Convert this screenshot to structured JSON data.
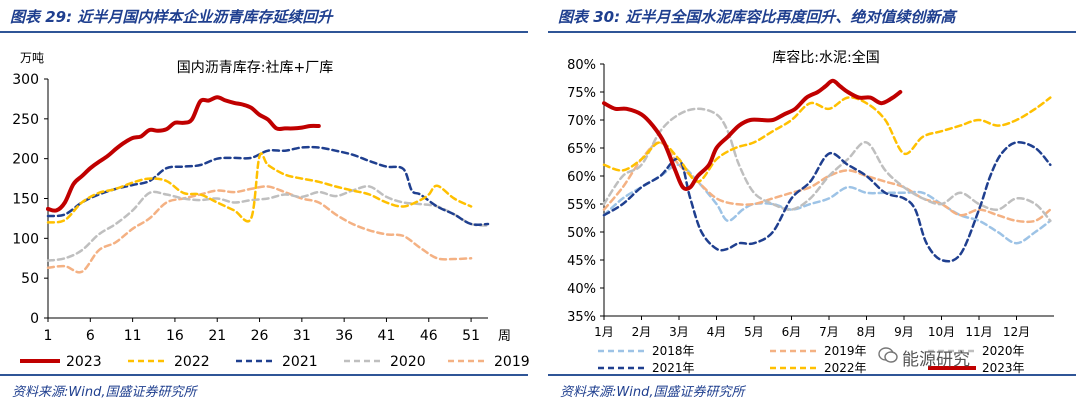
{
  "left": {
    "figure_title": "图表 29:  近半月国内样本企业沥青库存延续回升",
    "source": "资料来源:Wind,国盛证券研究所"
  },
  "right": {
    "figure_title": "图表 30:  近半月全国水泥库容比再度回升、绝对值续创新高",
    "source": "资料来源:Wind,国盛证券研究所"
  },
  "watermark": "能源研究",
  "chart_data": [
    {
      "type": "line",
      "title": "国内沥青库存:社库+厂库",
      "ylabel": "万吨",
      "xlabel": "周",
      "ylim": [
        0,
        300
      ],
      "yticks": [
        0,
        50,
        100,
        150,
        200,
        250,
        300
      ],
      "xlim": [
        1,
        53
      ],
      "xticks": [
        1,
        6,
        11,
        16,
        21,
        26,
        31,
        36,
        41,
        46,
        51
      ],
      "legend_position": "bottom",
      "series": [
        {
          "name": "2023",
          "color": "#c00000",
          "style": "solid",
          "width": 4,
          "x": [
            1,
            2,
            3,
            4,
            5,
            6,
            7,
            8,
            9,
            10,
            11,
            12,
            13,
            14,
            15,
            16,
            17,
            18,
            19,
            20,
            21,
            22,
            23,
            24,
            25,
            26,
            27,
            28,
            29,
            30,
            31,
            32,
            33
          ],
          "y": [
            137,
            135,
            145,
            168,
            178,
            188,
            196,
            203,
            212,
            220,
            226,
            228,
            236,
            235,
            237,
            245,
            245,
            249,
            272,
            273,
            277,
            273,
            270,
            268,
            264,
            255,
            249,
            238,
            238,
            238,
            239,
            241,
            241
          ]
        },
        {
          "name": "2022",
          "color": "#ffc000",
          "style": "dashed",
          "width": 2.5,
          "x": [
            1,
            3,
            5,
            7,
            9,
            11,
            13,
            15,
            17,
            19,
            21,
            23,
            25,
            26,
            27,
            29,
            31,
            33,
            35,
            37,
            39,
            41,
            43,
            45,
            46,
            47,
            49,
            51
          ],
          "y": [
            120,
            123,
            145,
            157,
            162,
            170,
            175,
            172,
            157,
            155,
            145,
            135,
            125,
            203,
            192,
            180,
            175,
            171,
            165,
            160,
            155,
            145,
            140,
            148,
            155,
            166,
            150,
            140
          ]
        },
        {
          "name": "2021",
          "color": "#1f3f8f",
          "style": "dashed",
          "width": 2.5,
          "x": [
            1,
            3,
            5,
            7,
            9,
            11,
            13,
            15,
            17,
            19,
            21,
            23,
            25,
            27,
            29,
            31,
            33,
            35,
            37,
            39,
            41,
            43,
            44,
            45,
            47,
            49,
            51,
            53
          ],
          "y": [
            128,
            130,
            145,
            155,
            162,
            167,
            172,
            188,
            190,
            192,
            200,
            201,
            201,
            210,
            210,
            214,
            214,
            210,
            205,
            197,
            190,
            187,
            160,
            155,
            140,
            130,
            118,
            118
          ]
        },
        {
          "name": "2020",
          "color": "#bfbfbf",
          "style": "dashed",
          "width": 2.5,
          "x": [
            1,
            3,
            5,
            7,
            9,
            11,
            13,
            15,
            17,
            19,
            21,
            23,
            25,
            27,
            29,
            31,
            33,
            35,
            37,
            39,
            41,
            43,
            45,
            47,
            49,
            51,
            53
          ],
          "y": [
            72,
            75,
            85,
            105,
            118,
            135,
            157,
            155,
            150,
            148,
            150,
            145,
            148,
            150,
            155,
            152,
            158,
            153,
            160,
            165,
            152,
            145,
            143,
            140,
            130,
            118,
            116
          ]
        },
        {
          "name": "2019",
          "color": "#f4b183",
          "style": "dashed",
          "width": 2.5,
          "x": [
            1,
            3,
            5,
            7,
            9,
            11,
            13,
            15,
            17,
            19,
            21,
            23,
            25,
            27,
            29,
            31,
            33,
            35,
            37,
            39,
            41,
            43,
            45,
            47,
            49,
            51
          ],
          "y": [
            63,
            65,
            58,
            85,
            95,
            112,
            125,
            145,
            150,
            155,
            160,
            158,
            162,
            165,
            158,
            150,
            145,
            130,
            118,
            110,
            105,
            103,
            88,
            75,
            74,
            75
          ]
        }
      ]
    },
    {
      "type": "line",
      "title": "库容比:水泥:全国",
      "ylabel": "",
      "xlabel": "",
      "ylim": [
        35,
        80
      ],
      "yticks": [
        "35%",
        "40%",
        "45%",
        "50%",
        "55%",
        "60%",
        "65%",
        "70%",
        "75%",
        "80%"
      ],
      "xcategories": [
        "1月",
        "2月",
        "3月",
        "4月",
        "5月",
        "6月",
        "7月",
        "8月",
        "9月",
        "10月",
        "11月",
        "12月"
      ],
      "xlim": [
        1,
        13
      ],
      "legend_position": "bottom",
      "series": [
        {
          "name": "2018年",
          "color": "#9dc3e6",
          "style": "dashed",
          "width": 2.5,
          "x": [
            1,
            1.5,
            2,
            2.5,
            3,
            3.5,
            4,
            4.3,
            4.7,
            5,
            5.5,
            6,
            6.5,
            7,
            7.5,
            8,
            8.5,
            9,
            9.5,
            10,
            10.5,
            11,
            11.5,
            12,
            12.5,
            12.9
          ],
          "y": [
            53,
            56,
            58,
            60,
            62,
            59,
            55,
            52,
            54,
            55,
            55,
            54,
            55,
            56,
            58,
            57,
            57,
            57,
            57,
            55,
            53,
            52,
            50,
            48,
            50,
            52
          ]
        },
        {
          "name": "2019年",
          "color": "#f4b183",
          "style": "dashed",
          "width": 2.5,
          "x": [
            1,
            1.5,
            2,
            2.5,
            3,
            3.5,
            4,
            4.5,
            5,
            5.5,
            6,
            6.5,
            7,
            7.5,
            8,
            8.5,
            9,
            9.5,
            10,
            10.5,
            11,
            11.5,
            12,
            12.5,
            12.9
          ],
          "y": [
            54,
            58,
            63,
            66,
            62,
            59,
            56,
            55,
            55,
            56,
            57,
            58,
            60,
            61,
            60,
            59,
            58,
            56,
            55,
            53,
            54,
            53,
            52,
            52,
            54
          ]
        },
        {
          "name": "2020年",
          "color": "#bfbfbf",
          "style": "dashed",
          "width": 2.5,
          "x": [
            1,
            1.5,
            2,
            2.5,
            3,
            3.5,
            4,
            4.3,
            4.6,
            5,
            5.5,
            6,
            6.5,
            7,
            7.5,
            8,
            8.5,
            9,
            9.5,
            10,
            10.5,
            11,
            11.5,
            12,
            12.5,
            12.9
          ],
          "y": [
            55,
            60,
            62,
            68,
            71,
            72,
            71,
            68,
            62,
            57,
            55,
            54,
            56,
            60,
            63,
            66,
            61,
            58,
            56,
            55,
            57,
            55,
            54,
            56,
            55,
            52
          ]
        },
        {
          "name": "2021年",
          "color": "#1f3f8f",
          "style": "dashed",
          "width": 2.5,
          "x": [
            1,
            1.5,
            2,
            2.5,
            3,
            3.3,
            3.6,
            4,
            4.3,
            4.6,
            5,
            5.5,
            6,
            6.5,
            7,
            7.5,
            8,
            8.5,
            9,
            9.3,
            9.6,
            10,
            10.5,
            11,
            11.3,
            11.6,
            12,
            12.5,
            12.9
          ],
          "y": [
            53,
            55,
            58,
            60,
            63,
            56,
            50,
            47,
            47,
            48,
            48,
            50,
            56,
            59,
            64,
            62,
            60,
            57,
            56,
            54,
            48,
            45,
            46,
            54,
            60,
            64,
            66,
            65,
            62
          ]
        },
        {
          "name": "2022年",
          "color": "#ffc000",
          "style": "dashed",
          "width": 2.5,
          "x": [
            1,
            1.5,
            2,
            2.5,
            3,
            3.5,
            4,
            4.5,
            5,
            5.5,
            6,
            6.5,
            7,
            7.5,
            8,
            8.5,
            9,
            9.5,
            10,
            10.5,
            11,
            11.5,
            12,
            12.5,
            12.9
          ],
          "y": [
            62,
            61,
            63,
            66,
            63,
            59,
            63,
            65,
            66,
            68,
            70,
            73,
            72,
            74,
            73,
            70,
            64,
            67,
            68,
            69,
            70,
            69,
            70,
            72,
            74
          ]
        },
        {
          "name": "2023年",
          "color": "#c00000",
          "style": "solid",
          "width": 4,
          "x": [
            1,
            1.3,
            1.6,
            2,
            2.3,
            2.6,
            2.9,
            3.1,
            3.3,
            3.5,
            3.8,
            4,
            4.3,
            4.6,
            4.9,
            5.2,
            5.5,
            5.8,
            6.1,
            6.4,
            6.7,
            6.9,
            7.1,
            7.3,
            7.5,
            7.8,
            8.1,
            8.4,
            8.7,
            8.9
          ],
          "y": [
            73,
            72,
            72,
            71,
            69,
            66,
            61,
            58,
            58,
            60,
            62,
            65,
            67,
            69,
            70,
            70,
            70,
            71,
            72,
            74,
            75,
            76,
            77,
            76,
            75,
            74,
            74,
            73,
            74,
            75
          ]
        }
      ]
    }
  ]
}
